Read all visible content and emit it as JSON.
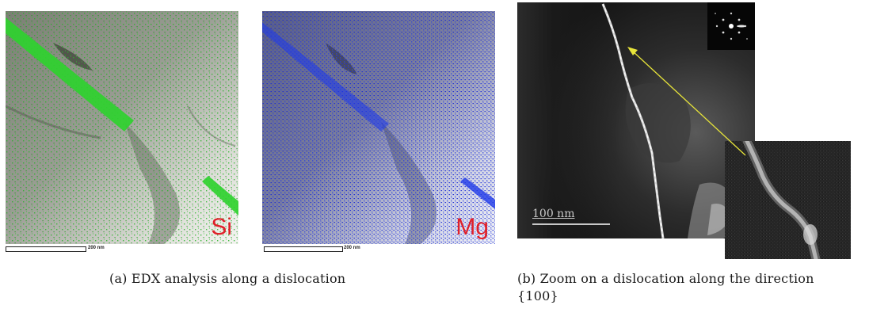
{
  "figure": {
    "subfigure_a": {
      "caption": "(a) EDX analysis along a dislocation",
      "maps": [
        {
          "element": "Si",
          "scale_label": "200 nm",
          "dot_color": "#23b323",
          "band_color": "#2fd12f"
        },
        {
          "element": "Mg",
          "scale_label": "200 nm",
          "dot_color": "#1a2bd6",
          "band_color": "#1f3ae8"
        }
      ]
    },
    "subfigure_b": {
      "caption_line1": "(b) Zoom on a dislocation along the direction",
      "caption_line2": "{100}",
      "scale_label": "100 nm",
      "arrow_color": "#e7e43a"
    }
  }
}
